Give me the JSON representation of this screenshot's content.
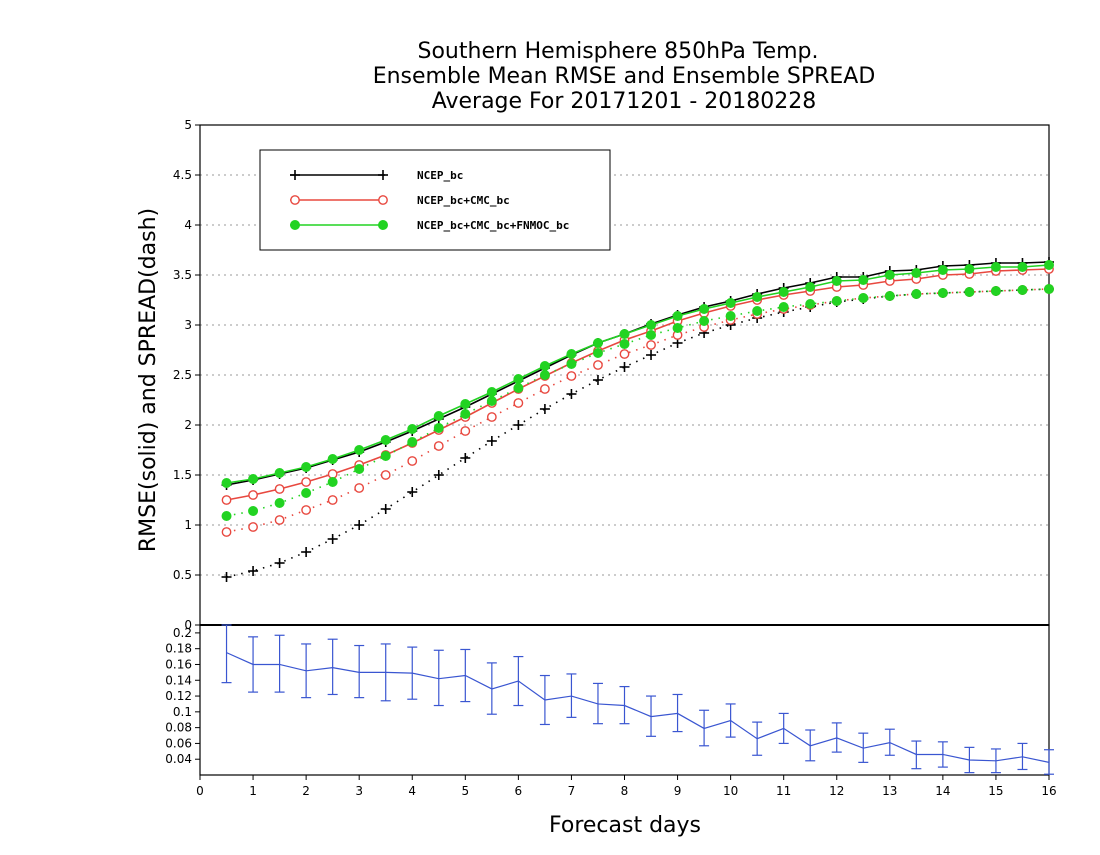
{
  "chart_data": {
    "type": "line",
    "title": [
      "Southern Hemisphere 850hPa Temp.",
      "Ensemble Mean RMSE and Ensemble SPREAD",
      "Average For 20171201 - 20180228"
    ],
    "xlabel": "Forecast days",
    "ylabel": "RMSE(solid) and SPREAD(dash)",
    "xlim": [
      0,
      16
    ],
    "x_ticks": [
      0,
      1,
      2,
      3,
      4,
      5,
      6,
      7,
      8,
      9,
      10,
      11,
      12,
      13,
      14,
      15,
      16
    ],
    "upper_panel": {
      "ylim": [
        0,
        5
      ],
      "y_ticks": [
        0.5,
        1,
        1.5,
        2,
        2.5,
        3,
        3.5,
        4,
        4.5,
        5
      ],
      "grid": true,
      "legend": "top-left",
      "x": [
        0.5,
        1,
        1.5,
        2,
        2.5,
        3,
        3.5,
        4,
        4.5,
        5,
        5.5,
        6,
        6.5,
        7,
        7.5,
        8,
        8.5,
        9,
        9.5,
        10,
        10.5,
        11,
        11.5,
        12,
        12.5,
        13,
        13.5,
        14,
        14.5,
        15,
        15.5,
        16
      ],
      "series": [
        {
          "name": "NCEP_bc",
          "color": "#000000",
          "marker": "plus",
          "rmse": [
            1.4,
            1.45,
            1.51,
            1.57,
            1.65,
            1.73,
            1.83,
            1.94,
            2.06,
            2.18,
            2.31,
            2.44,
            2.57,
            2.7,
            2.82,
            2.91,
            3.01,
            3.1,
            3.18,
            3.24,
            3.31,
            3.37,
            3.42,
            3.48,
            3.48,
            3.54,
            3.55,
            3.59,
            3.6,
            3.62,
            3.62,
            3.63
          ],
          "spread": [
            0.48,
            0.54,
            0.62,
            0.73,
            0.86,
            1.0,
            1.16,
            1.33,
            1.5,
            1.67,
            1.84,
            2.0,
            2.16,
            2.31,
            2.45,
            2.58,
            2.7,
            2.82,
            2.92,
            3.0,
            3.07,
            3.13,
            3.18,
            3.23,
            3.26,
            3.29,
            3.31,
            3.32,
            3.33,
            3.34,
            3.35,
            3.36
          ]
        },
        {
          "name": "NCEP_bc+CMC_bc",
          "color": "#e8483f",
          "marker": "open-circle",
          "rmse": [
            1.25,
            1.3,
            1.36,
            1.43,
            1.51,
            1.6,
            1.7,
            1.82,
            1.95,
            2.08,
            2.22,
            2.36,
            2.49,
            2.62,
            2.74,
            2.85,
            2.94,
            3.04,
            3.12,
            3.19,
            3.25,
            3.3,
            3.34,
            3.38,
            3.4,
            3.44,
            3.46,
            3.5,
            3.51,
            3.54,
            3.55,
            3.56
          ],
          "spread": [
            0.93,
            0.98,
            1.05,
            1.15,
            1.25,
            1.37,
            1.5,
            1.64,
            1.79,
            1.94,
            2.08,
            2.22,
            2.36,
            2.49,
            2.6,
            2.71,
            2.8,
            2.9,
            2.98,
            3.05,
            3.11,
            3.16,
            3.2,
            3.24,
            3.27,
            3.29,
            3.31,
            3.32,
            3.33,
            3.34,
            3.35,
            3.36
          ]
        },
        {
          "name": "NCEP_bc+CMC_bc+FNMOC_bc",
          "color": "#22d322",
          "marker": "filled-circle",
          "rmse": [
            1.42,
            1.46,
            1.52,
            1.58,
            1.66,
            1.75,
            1.85,
            1.96,
            2.09,
            2.21,
            2.33,
            2.46,
            2.59,
            2.71,
            2.82,
            2.91,
            3.0,
            3.09,
            3.16,
            3.22,
            3.28,
            3.33,
            3.38,
            3.44,
            3.45,
            3.5,
            3.52,
            3.55,
            3.56,
            3.58,
            3.58,
            3.6
          ],
          "spread": [
            1.09,
            1.14,
            1.22,
            1.32,
            1.43,
            1.56,
            1.69,
            1.83,
            1.97,
            2.11,
            2.24,
            2.37,
            2.5,
            2.61,
            2.72,
            2.81,
            2.9,
            2.97,
            3.04,
            3.09,
            3.14,
            3.18,
            3.21,
            3.24,
            3.27,
            3.29,
            3.31,
            3.32,
            3.33,
            3.34,
            3.35,
            3.36
          ]
        }
      ]
    },
    "lower_panel": {
      "type": "line-errorbar",
      "color": "#3a56d1",
      "ylim": [
        0.02,
        0.21
      ],
      "y_ticks": [
        0.04,
        0.06,
        0.08,
        0.1,
        0.12,
        0.14,
        0.16,
        0.18,
        0.2
      ],
      "x": [
        0.5,
        1,
        1.5,
        2,
        2.5,
        3,
        3.5,
        4,
        4.5,
        5,
        5.5,
        6,
        6.5,
        7,
        7.5,
        8,
        8.5,
        9,
        9.5,
        10,
        10.5,
        11,
        11.5,
        12,
        12.5,
        13,
        13.5,
        14,
        14.5,
        15,
        15.5,
        16
      ],
      "values": [
        0.175,
        0.16,
        0.16,
        0.152,
        0.156,
        0.15,
        0.15,
        0.149,
        0.142,
        0.146,
        0.129,
        0.139,
        0.115,
        0.12,
        0.11,
        0.108,
        0.094,
        0.098,
        0.079,
        0.089,
        0.066,
        0.079,
        0.057,
        0.067,
        0.054,
        0.061,
        0.046,
        0.046,
        0.039,
        0.038,
        0.043,
        0.036
      ],
      "err_low": [
        0.137,
        0.125,
        0.125,
        0.118,
        0.122,
        0.118,
        0.114,
        0.116,
        0.108,
        0.113,
        0.097,
        0.108,
        0.084,
        0.093,
        0.085,
        0.085,
        0.069,
        0.075,
        0.057,
        0.068,
        0.045,
        0.06,
        0.038,
        0.049,
        0.036,
        0.045,
        0.028,
        0.03,
        0.023,
        0.023,
        0.027,
        0.021
      ],
      "err_high": [
        0.21,
        0.195,
        0.197,
        0.186,
        0.192,
        0.184,
        0.186,
        0.182,
        0.178,
        0.179,
        0.162,
        0.17,
        0.146,
        0.148,
        0.136,
        0.132,
        0.12,
        0.122,
        0.102,
        0.11,
        0.087,
        0.098,
        0.077,
        0.086,
        0.073,
        0.078,
        0.063,
        0.062,
        0.055,
        0.053,
        0.06,
        0.052
      ],
      "grid": false
    }
  }
}
